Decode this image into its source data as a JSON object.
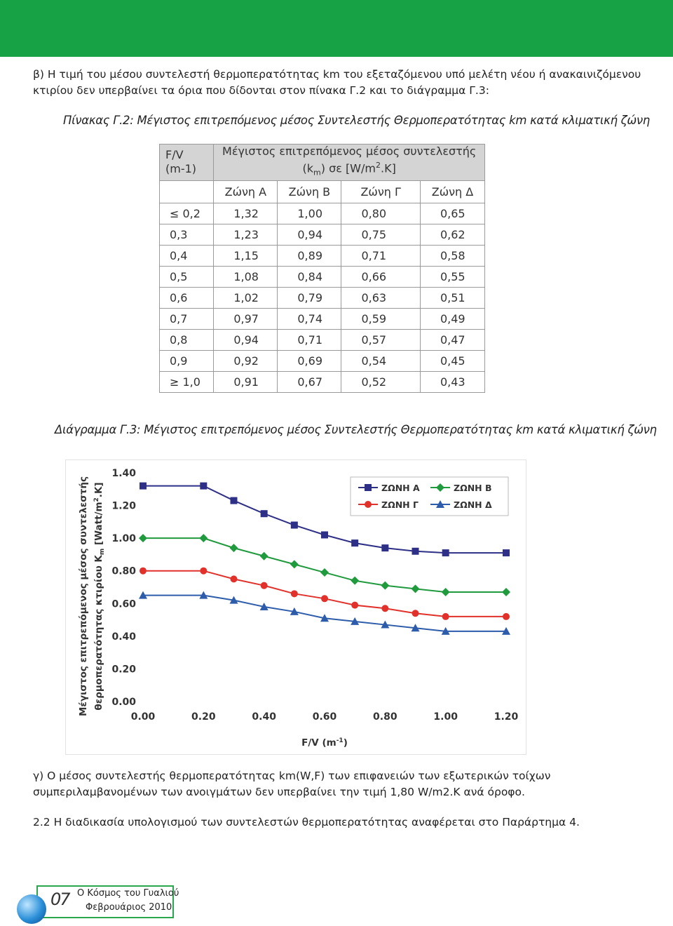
{
  "intro": [
    "β) Η τιμή του μέσου συντελεστή θερμοπερατότητας km του εξεταζόμενου υπό μελέτη νέου ή ανακαινιζόμενου",
    "κτιρίου δεν υπερβαίνει τα όρια που δίδονται στον πίνακα Γ.2 και το διάγραμμα Γ.3:"
  ],
  "table_caption": "Πίνακας Γ.2: Μέγιστος επιτρεπόμενος μέσος Συντελεστής Θερμοπερατότητας km κατά κλιματική ζώνη",
  "table": {
    "header": {
      "fv": [
        "F/V",
        "(m-1)"
      ],
      "title": "Μέγιστος επιτρεπόμενος μέσος συντελεστής",
      "unit": [
        "(k",
        "m",
        ") σε [W/m",
        "2",
        ".K]"
      ],
      "zones": [
        "Ζώνη Α",
        "Ζώνη Β",
        "Ζώνη Γ",
        "Ζώνη Δ"
      ]
    },
    "rows": [
      [
        "≤ 0,2",
        "1,32",
        "1,00",
        "0,80",
        "0,65"
      ],
      [
        "0,3",
        "1,23",
        "0,94",
        "0,75",
        "0,62"
      ],
      [
        "0,4",
        "1,15",
        "0,89",
        "0,71",
        "0,58"
      ],
      [
        "0,5",
        "1,08",
        "0,84",
        "0,66",
        "0,55"
      ],
      [
        "0,6",
        "1,02",
        "0,79",
        "0,63",
        "0,51"
      ],
      [
        "0,7",
        "0,97",
        "0,74",
        "0,59",
        "0,49"
      ],
      [
        "0,8",
        "0,94",
        "0,71",
        "0,57",
        "0,47"
      ],
      [
        "0,9",
        "0,92",
        "0,69",
        "0,54",
        "0,45"
      ],
      [
        "≥ 1,0",
        "0,91",
        "0,67",
        "0,52",
        "0,43"
      ]
    ]
  },
  "chart_caption": "Διάγραμμα Γ.3: Μέγιστος επιτρεπόμενος μέσος Συντελεστής Θερμοπερατότητας km κατά κλιματική ζώνη",
  "chart_data": {
    "type": "line",
    "ylabel": [
      "Μέγιστος επιτρεπόμενος μέσος συντελεστής",
      "θερμοπερατότητας κτιρίου K",
      "m",
      " [Watt/m",
      "2",
      ".K]"
    ],
    "xlabel": [
      "F/V (m",
      "-1",
      ")"
    ],
    "x": [
      0,
      0.2,
      0.3,
      0.4,
      0.5,
      0.6,
      0.7,
      0.8,
      0.9,
      1.0,
      1.2
    ],
    "series": [
      {
        "name": "ΖΩΝΗ Α",
        "color": "#2e2f86",
        "marker": "square",
        "values": [
          1.32,
          1.32,
          1.23,
          1.15,
          1.08,
          1.02,
          0.97,
          0.94,
          0.92,
          0.91,
          0.91
        ]
      },
      {
        "name": "ΖΩΝΗ Β",
        "color": "#1f9a3c",
        "marker": "diamond",
        "values": [
          1.0,
          1.0,
          0.94,
          0.89,
          0.84,
          0.79,
          0.74,
          0.71,
          0.69,
          0.67,
          0.67
        ]
      },
      {
        "name": "ΖΩΝΗ Γ",
        "color": "#e2312b",
        "marker": "circle",
        "values": [
          0.8,
          0.8,
          0.75,
          0.71,
          0.66,
          0.63,
          0.59,
          0.57,
          0.54,
          0.52,
          0.52
        ]
      },
      {
        "name": "ΖΩΝΗ Δ",
        "color": "#2d5cab",
        "marker": "triangle",
        "values": [
          0.65,
          0.65,
          0.62,
          0.58,
          0.55,
          0.51,
          0.49,
          0.47,
          0.45,
          0.43,
          0.43
        ]
      }
    ],
    "xlim": [
      0,
      1.2
    ],
    "ylim": [
      0,
      1.4
    ],
    "xticks": [
      {
        "value": 0,
        "label": "0.00"
      },
      {
        "value": 0.2,
        "label": "0.20"
      },
      {
        "value": 0.4,
        "label": "0.40"
      },
      {
        "value": 0.6,
        "label": "0.60"
      },
      {
        "value": 0.8,
        "label": "0.80"
      },
      {
        "value": 1.0,
        "label": "1.00"
      },
      {
        "value": 1.2,
        "label": "1.20"
      }
    ],
    "yticks": [
      {
        "value": 0,
        "label": "0.00"
      },
      {
        "value": 0.2,
        "label": "0.20"
      },
      {
        "value": 0.4,
        "label": "0.40"
      },
      {
        "value": 0.6,
        "label": "0.60"
      },
      {
        "value": 0.8,
        "label": "0.80"
      },
      {
        "value": 1.0,
        "label": "1.00"
      },
      {
        "value": 1.2,
        "label": "1.20"
      },
      {
        "value": 1.4,
        "label": "1.40"
      }
    ],
    "legend": "upper right",
    "grid": false
  },
  "outro": [
    "γ) Ο μέσος συντελεστής θερμοπερατότητας km(W,F) των επιφανειών των εξωτερικών τοίχων",
    "συμπεριλαμβανομένων των ανοιγμάτων δεν υπερβαίνει την τιμή 1,80 W/m2.K ανά όροφο."
  ],
  "note": "2.2 Η διαδικασία υπολογισμού των συντελεστών θερμοπερατότητας αναφέρεται στο Παράρτημα 4.",
  "footer": {
    "page": "07",
    "magazine": "Ο Κόσμος του Γυαλιού",
    "issue": "Φεβρουάριος 2010"
  }
}
